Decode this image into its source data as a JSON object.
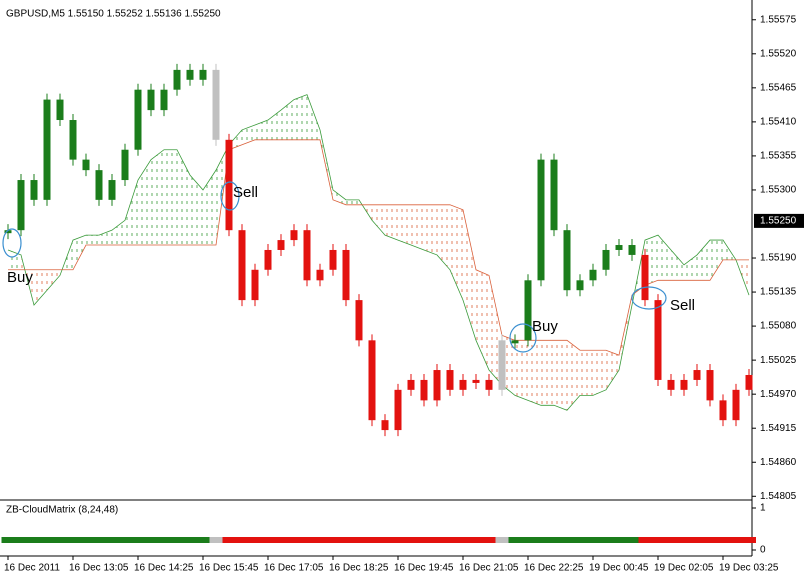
{
  "chart_data": {
    "type": "candle-cloud",
    "title": "GBPUSD,M5  1.55150 1.55252 1.55136 1.55250",
    "categories": [
      "16 Dec 2011",
      null,
      null,
      null,
      null,
      "16 Dec 13:05",
      null,
      null,
      null,
      null,
      "16 Dec 14:25",
      null,
      null,
      null,
      null,
      "16 Dec 15:45",
      null,
      null,
      null,
      null,
      "16 Dec 17:05",
      null,
      null,
      null,
      null,
      "16 Dec 18:25",
      null,
      null,
      null,
      null,
      "16 Dec 19:45",
      null,
      null,
      null,
      null,
      "16 Dec 21:05",
      null,
      null,
      null,
      null,
      "16 Dec 22:25",
      null,
      null,
      null,
      null,
      "19 Dec 00:45",
      null,
      null,
      null,
      null,
      "19 Dec 02:05",
      null,
      null,
      null,
      null,
      "19 Dec 03:25",
      null,
      null
    ],
    "values": [
      1.55235,
      1.55316,
      1.55284,
      1.55446,
      1.55413,
      1.55349,
      1.55332,
      1.55284,
      1.55316,
      1.55365,
      1.55462,
      1.55429,
      1.55462,
      1.55494,
      1.55478,
      1.55494,
      1.55381,
      1.55235,
      1.55122,
      1.55171,
      1.55203,
      1.55219,
      1.55235,
      1.55154,
      1.55171,
      1.55203,
      1.55122,
      1.55057,
      1.54928,
      1.54912,
      1.54977,
      1.54993,
      1.5496,
      1.55009,
      1.54977,
      1.54993,
      1.54993,
      1.54977,
      1.55057,
      1.55057,
      1.55154,
      1.55349,
      1.55235,
      1.55138,
      1.55154,
      1.55171,
      1.55203,
      1.55211,
      1.55195,
      1.55122,
      1.54993,
      1.54977,
      1.54993,
      1.55009,
      1.5496,
      1.54928,
      1.54977,
      1.55001
    ],
    "colors": [
      "#1b7d1b",
      "#1b7d1b",
      "#1b7d1b",
      "#1b7d1b",
      "#1b7d1b",
      "#1b7d1b",
      "#1b7d1b",
      "#1b7d1b",
      "#1b7d1b",
      "#1b7d1b",
      "#1b7d1b",
      "#1b7d1b",
      "#1b7d1b",
      "#1b7d1b",
      "#1b7d1b",
      "#1b7d1b",
      "#c0c0c0",
      "#e3120f",
      "#e3120f",
      "#e3120f",
      "#e3120f",
      "#e3120f",
      "#e3120f",
      "#e3120f",
      "#e3120f",
      "#e3120f",
      "#e3120f",
      "#e3120f",
      "#e3120f",
      "#e3120f",
      "#e3120f",
      "#e3120f",
      "#e3120f",
      "#e3120f",
      "#e3120f",
      "#e3120f",
      "#e3120f",
      "#e3120f",
      "#c0c0c0",
      "#1b7d1b",
      "#1b7d1b",
      "#1b7d1b",
      "#1b7d1b",
      "#1b7d1b",
      "#1b7d1b",
      "#1b7d1b",
      "#1b7d1b",
      "#1b7d1b",
      "#1b7d1b",
      "#e3120f",
      "#e3120f",
      "#e3120f",
      "#e3120f",
      "#e3120f",
      "#e3120f",
      "#e3120f",
      "#e3120f",
      "#e3120f"
    ],
    "span_a": {
      "color": "#3a9a3a",
      "values": [
        1.55203,
        1.55195,
        1.55114,
        1.55138,
        1.55162,
        1.55219,
        1.55227,
        1.55227,
        1.55235,
        1.55251,
        1.55316,
        1.55349,
        1.55365,
        1.55365,
        1.55324,
        1.553,
        1.55332,
        1.55373,
        1.55397,
        1.55405,
        1.55413,
        1.55429,
        1.55446,
        1.55454,
        1.55397,
        1.553,
        1.55284,
        1.55284,
        1.55251,
        1.55227,
        1.55219,
        1.55211,
        1.55203,
        1.55195,
        1.55171,
        1.55122,
        1.55057,
        1.55009,
        1.54985,
        1.54968,
        1.5496,
        1.54952,
        1.54952,
        1.54944,
        1.54968,
        1.54968,
        1.54977,
        1.55009,
        1.55114,
        1.55219,
        1.55227,
        1.55203,
        1.55179,
        1.55195,
        1.55219,
        1.55219,
        1.55187,
        1.5513
      ]
    },
    "span_b": {
      "color": "#d9603a",
      "values": [
        1.55171,
        1.55171,
        1.55171,
        1.55171,
        1.55171,
        1.55171,
        1.55211,
        1.55211,
        1.55211,
        1.55211,
        1.55211,
        1.55211,
        1.55211,
        1.55211,
        1.55211,
        1.55211,
        1.55211,
        1.55365,
        1.55373,
        1.55381,
        1.55381,
        1.55381,
        1.55381,
        1.55381,
        1.55381,
        1.55284,
        1.55276,
        1.55276,
        1.55276,
        1.55276,
        1.55276,
        1.55276,
        1.55276,
        1.55276,
        1.55276,
        1.55268,
        1.55171,
        1.55162,
        1.55065,
        1.55057,
        1.55057,
        1.55057,
        1.55057,
        1.55057,
        1.55041,
        1.55041,
        1.55041,
        1.55033,
        1.5513,
        1.55146,
        1.55154,
        1.55154,
        1.55154,
        1.55154,
        1.55154,
        1.55187,
        1.55187,
        1.55187
      ]
    },
    "ylim": [
      1.54799,
      1.55594
    ],
    "yticks": [
      1.55575,
      {
        "value": 1.5552,
        "label": "1.55520"
      },
      1.55465,
      {
        "value": 1.5541,
        "label": "1.55410"
      },
      1.55355,
      {
        "value": 1.553,
        "label": "1.55300"
      },
      {
        "value": 1.5519,
        "label": "1.55190"
      },
      1.55135,
      {
        "value": 1.5508,
        "label": "1.55080"
      },
      1.55025,
      {
        "value": 1.5497,
        "label": "1.54970"
      },
      1.54915,
      {
        "value": 1.5486,
        "label": "1.54860"
      },
      1.54805
    ],
    "current_price": {
      "value": 1.5525,
      "label": "1.55250"
    },
    "annotations": [
      "Buy",
      "Sell",
      "Buy",
      "Sell"
    ],
    "indicator": {
      "title": "ZB-CloudMatrix (8,24,48)",
      "ylim": [
        0,
        1
      ],
      "yticks": [
        0,
        1
      ]
    }
  }
}
